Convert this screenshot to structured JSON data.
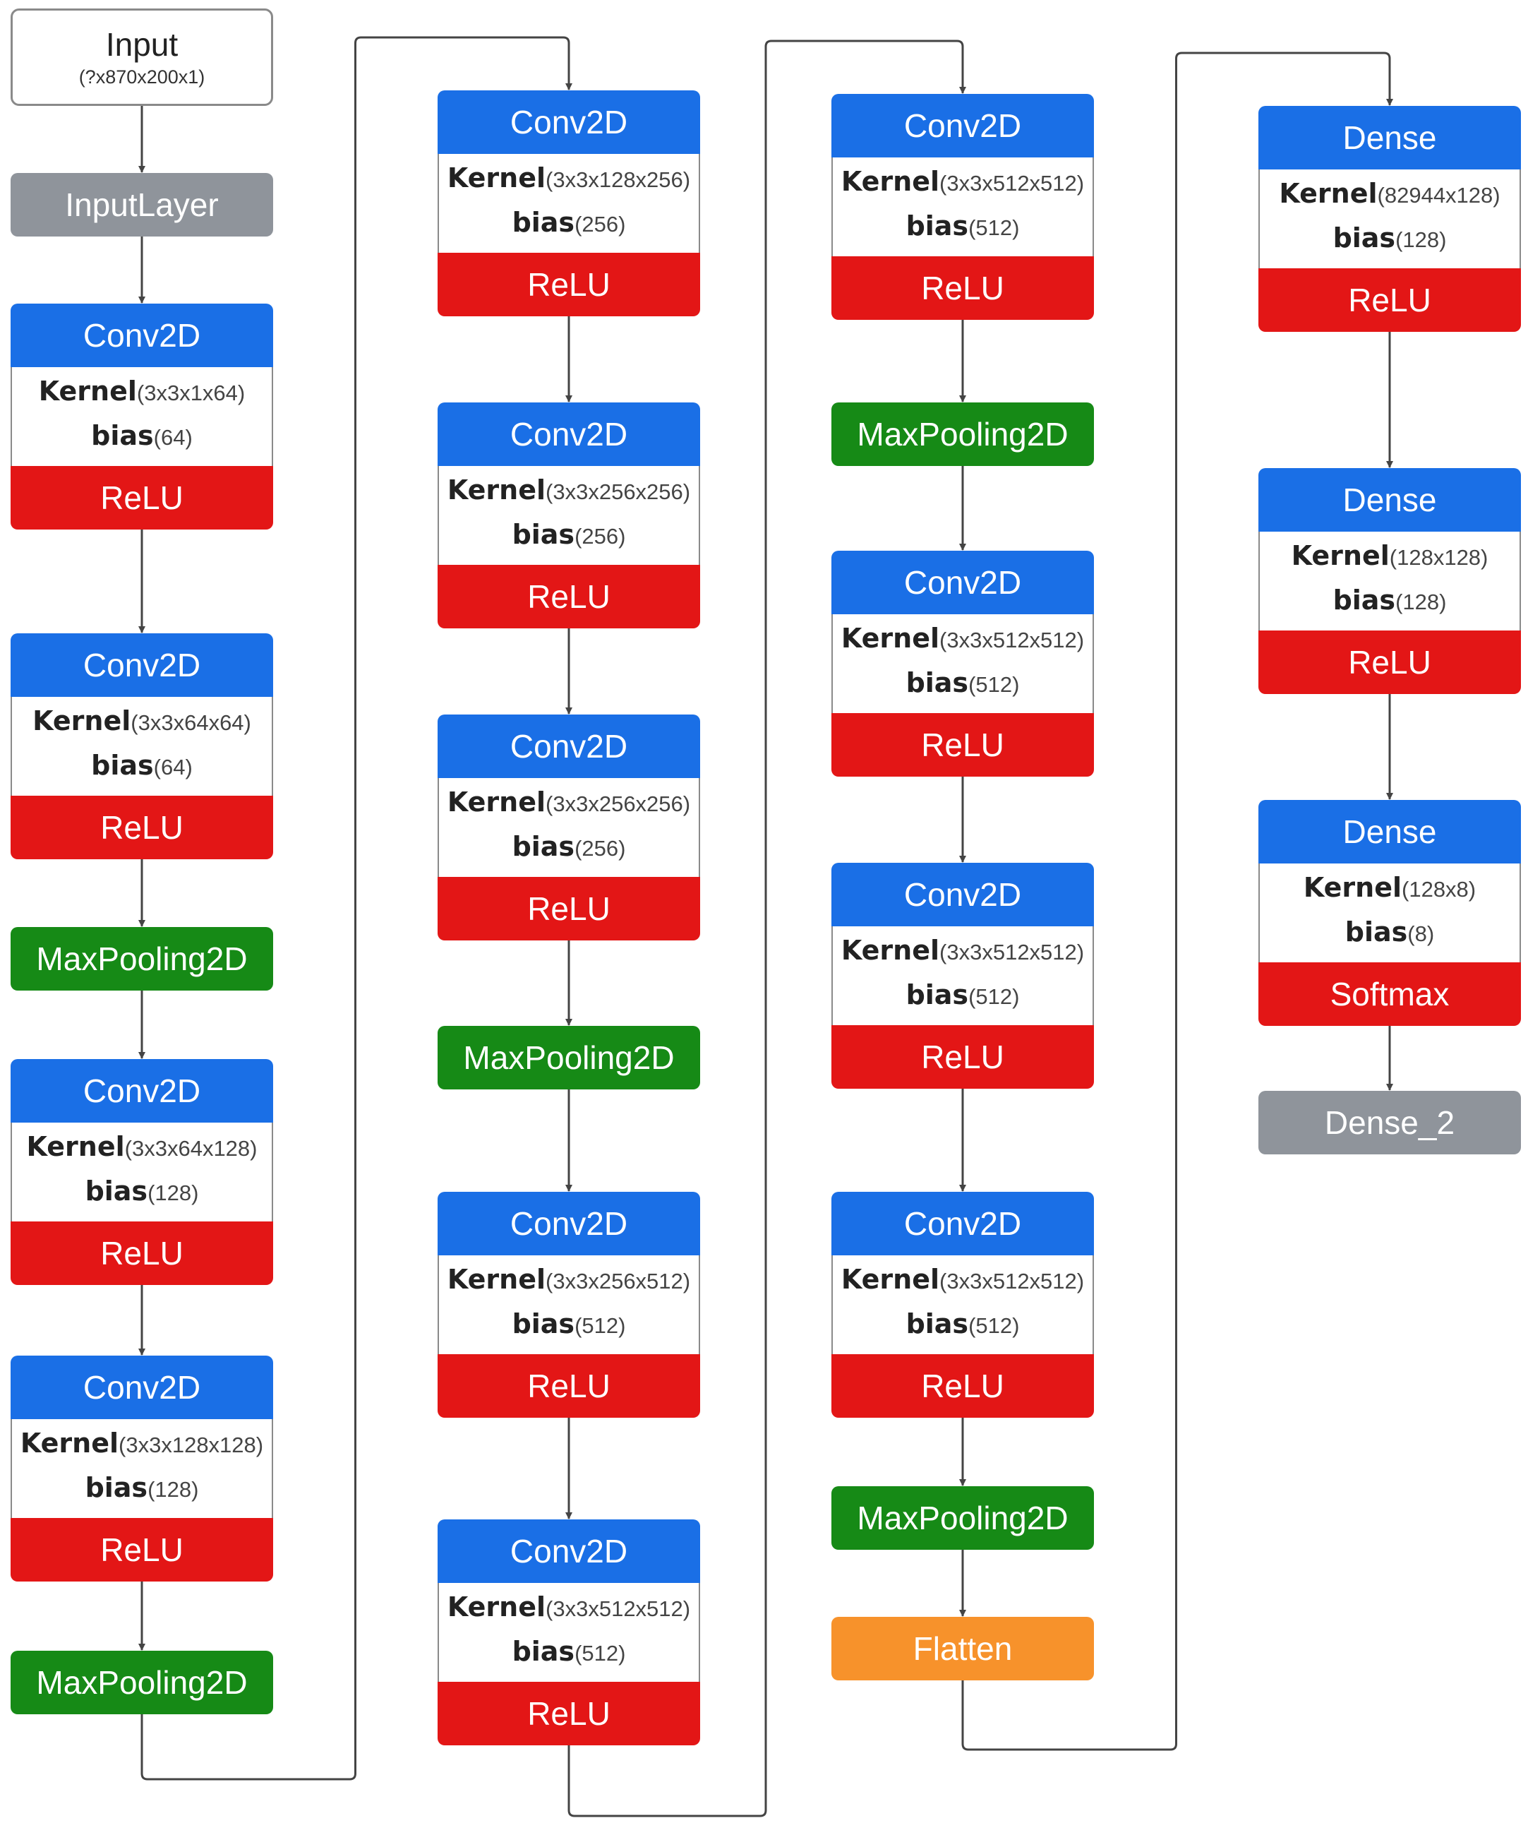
{
  "colors": {
    "conv": "#1a6fe6",
    "relu": "#e31616",
    "pool": "#168a16",
    "gray": "#8f949b",
    "flatten": "#f7922b",
    "connector": "#444444"
  },
  "input": {
    "title": "Input",
    "shape": "(?x870x200x1)"
  },
  "columns": [
    {
      "items": [
        {
          "type": "input"
        },
        {
          "type": "solo",
          "label": "InputLayer",
          "color": "gray"
        },
        {
          "type": "layer",
          "header": "Conv2D",
          "kernel": "(3x3x1x64)",
          "bias": "(64)",
          "activation": "ReLU"
        },
        {
          "type": "layer",
          "header": "Conv2D",
          "kernel": "(3x3x64x64)",
          "bias": "(64)",
          "activation": "ReLU"
        },
        {
          "type": "solo",
          "label": "MaxPooling2D",
          "color": "pool"
        },
        {
          "type": "layer",
          "header": "Conv2D",
          "kernel": "(3x3x64x128)",
          "bias": "(128)",
          "activation": "ReLU"
        },
        {
          "type": "layer",
          "header": "Conv2D",
          "kernel": "(3x3x128x128)",
          "bias": "(128)",
          "activation": "ReLU"
        },
        {
          "type": "solo",
          "label": "MaxPooling2D",
          "color": "pool"
        }
      ]
    },
    {
      "items": [
        {
          "type": "layer",
          "header": "Conv2D",
          "kernel": "(3x3x128x256)",
          "bias": "(256)",
          "activation": "ReLU"
        },
        {
          "type": "layer",
          "header": "Conv2D",
          "kernel": "(3x3x256x256)",
          "bias": "(256)",
          "activation": "ReLU"
        },
        {
          "type": "layer",
          "header": "Conv2D",
          "kernel": "(3x3x256x256)",
          "bias": "(256)",
          "activation": "ReLU"
        },
        {
          "type": "solo",
          "label": "MaxPooling2D",
          "color": "pool"
        },
        {
          "type": "layer",
          "header": "Conv2D",
          "kernel": "(3x3x256x512)",
          "bias": "(512)",
          "activation": "ReLU"
        },
        {
          "type": "layer",
          "header": "Conv2D",
          "kernel": "(3x3x512x512)",
          "bias": "(512)",
          "activation": "ReLU"
        }
      ]
    },
    {
      "items": [
        {
          "type": "layer",
          "header": "Conv2D",
          "kernel": "(3x3x512x512)",
          "bias": "(512)",
          "activation": "ReLU"
        },
        {
          "type": "solo",
          "label": "MaxPooling2D",
          "color": "pool"
        },
        {
          "type": "layer",
          "header": "Conv2D",
          "kernel": "(3x3x512x512)",
          "bias": "(512)",
          "activation": "ReLU"
        },
        {
          "type": "layer",
          "header": "Conv2D",
          "kernel": "(3x3x512x512)",
          "bias": "(512)",
          "activation": "ReLU"
        },
        {
          "type": "layer",
          "header": "Conv2D",
          "kernel": "(3x3x512x512)",
          "bias": "(512)",
          "activation": "ReLU"
        },
        {
          "type": "solo",
          "label": "MaxPooling2D",
          "color": "pool"
        },
        {
          "type": "solo",
          "label": "Flatten",
          "color": "flatten"
        }
      ]
    },
    {
      "items": [
        {
          "type": "layer",
          "header": "Dense",
          "kernel": "(82944x128)",
          "bias": "(128)",
          "activation": "ReLU"
        },
        {
          "type": "layer",
          "header": "Dense",
          "kernel": "(128x128)",
          "bias": "(128)",
          "activation": "ReLU"
        },
        {
          "type": "layer",
          "header": "Dense",
          "kernel": "(128x8)",
          "bias": "(8)",
          "activation": "Softmax"
        },
        {
          "type": "solo",
          "label": "Dense_2",
          "color": "gray"
        }
      ]
    }
  ],
  "text": {
    "kernel_label": "Kernel",
    "bias_label": "bias"
  }
}
